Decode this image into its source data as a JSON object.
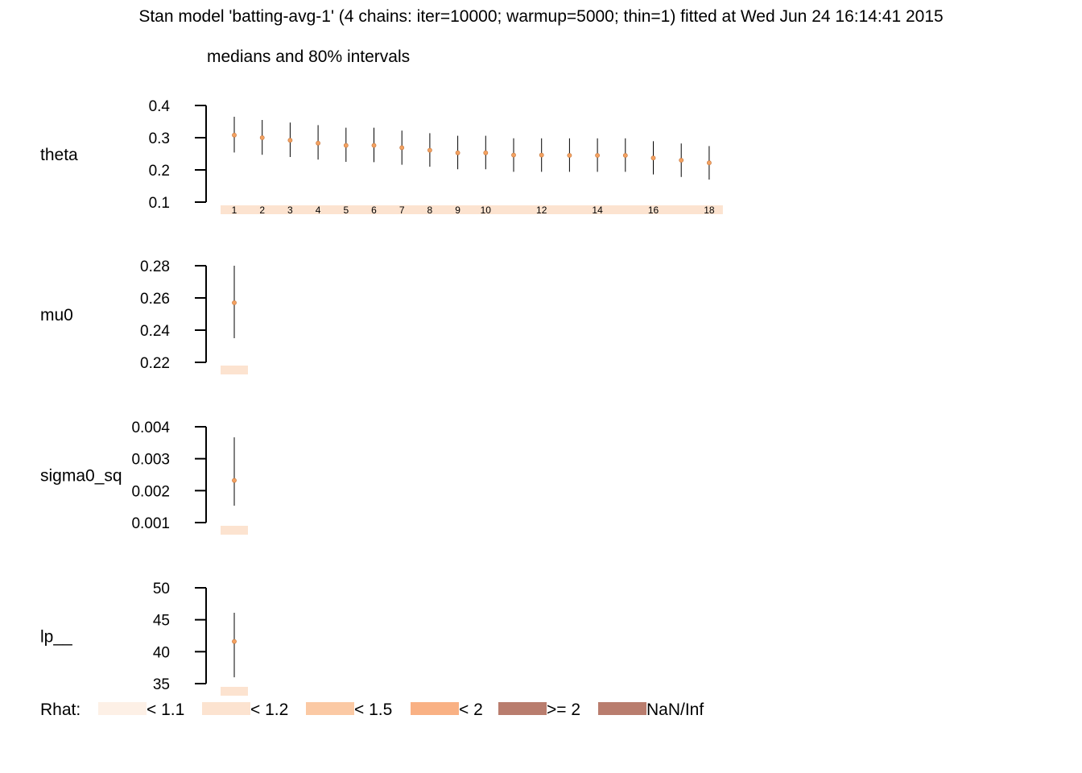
{
  "title": "Stan model 'batting-avg-1' (4 chains: iter=10000; warmup=5000; thin=1) fitted at Wed Jun 24 16:14:41 2015",
  "subtitle": "medians and 80% intervals",
  "colors": {
    "axis": "#000000",
    "interval": "#000000",
    "median_fill": "#f4a261",
    "median_stroke": "#c2733a",
    "rhat_lt_1_1": "#fdf0e6",
    "rhat_lt_1_2": "#fce3d0",
    "rhat_lt_1_5": "#fbc9a4",
    "rhat_lt_2": "#f9b184",
    "rhat_ge_2": "#b97d6e",
    "rhat_nan": "#b97d6e"
  },
  "chart_data": [
    {
      "type": "interval",
      "parameter": "theta",
      "ylim": [
        0.1,
        0.4
      ],
      "yticks": [
        "0.1",
        "0.2",
        "0.3",
        "0.4"
      ],
      "index_labels": [
        "1",
        "2",
        "3",
        "4",
        "5",
        "6",
        "7",
        "8",
        "9",
        "10",
        "",
        "12",
        "",
        "14",
        "",
        "16",
        "",
        "18"
      ],
      "rhat_band": "rhat_lt_1_2",
      "points": [
        {
          "index": 1,
          "median": 0.308,
          "low": 0.254,
          "high": 0.365
        },
        {
          "index": 2,
          "median": 0.3,
          "low": 0.247,
          "high": 0.355
        },
        {
          "index": 3,
          "median": 0.292,
          "low": 0.24,
          "high": 0.347
        },
        {
          "index": 4,
          "median": 0.283,
          "low": 0.232,
          "high": 0.339
        },
        {
          "index": 5,
          "median": 0.276,
          "low": 0.225,
          "high": 0.331
        },
        {
          "index": 6,
          "median": 0.276,
          "low": 0.224,
          "high": 0.331
        },
        {
          "index": 7,
          "median": 0.269,
          "low": 0.216,
          "high": 0.322
        },
        {
          "index": 8,
          "median": 0.261,
          "low": 0.21,
          "high": 0.314
        },
        {
          "index": 9,
          "median": 0.253,
          "low": 0.202,
          "high": 0.306
        },
        {
          "index": 10,
          "median": 0.253,
          "low": 0.202,
          "high": 0.306
        },
        {
          "index": 11,
          "median": 0.246,
          "low": 0.194,
          "high": 0.298
        },
        {
          "index": 12,
          "median": 0.246,
          "low": 0.194,
          "high": 0.298
        },
        {
          "index": 13,
          "median": 0.245,
          "low": 0.194,
          "high": 0.298
        },
        {
          "index": 14,
          "median": 0.245,
          "low": 0.194,
          "high": 0.298
        },
        {
          "index": 15,
          "median": 0.245,
          "low": 0.194,
          "high": 0.298
        },
        {
          "index": 16,
          "median": 0.237,
          "low": 0.186,
          "high": 0.289
        },
        {
          "index": 17,
          "median": 0.23,
          "low": 0.178,
          "high": 0.282
        },
        {
          "index": 18,
          "median": 0.222,
          "low": 0.17,
          "high": 0.274
        }
      ]
    },
    {
      "type": "interval",
      "parameter": "mu0",
      "ylim": [
        0.22,
        0.28
      ],
      "yticks": [
        "0.22",
        "0.24",
        "0.26",
        "0.28"
      ],
      "index_labels": [],
      "rhat_band": "rhat_lt_1_2",
      "points": [
        {
          "index": 1,
          "median": 0.257,
          "low": 0.235,
          "high": 0.28
        }
      ]
    },
    {
      "type": "interval",
      "parameter": "sigma0_sq",
      "ylim": [
        0.001,
        0.004
      ],
      "yticks": [
        "0.001",
        "0.002",
        "0.003",
        "0.004"
      ],
      "index_labels": [],
      "rhat_band": "rhat_lt_1_2",
      "points": [
        {
          "index": 1,
          "median": 0.00232,
          "low": 0.00153,
          "high": 0.00367
        }
      ]
    },
    {
      "type": "interval",
      "parameter": "lp__",
      "ylim": [
        35,
        50
      ],
      "yticks": [
        "35",
        "40",
        "45",
        "50"
      ],
      "index_labels": [],
      "rhat_band": "rhat_lt_1_2",
      "points": [
        {
          "index": 1,
          "median": 41.6,
          "low": 36.0,
          "high": 46.1
        }
      ]
    }
  ],
  "legend": {
    "title": "Rhat:",
    "items": [
      {
        "label": "< 1.1",
        "color_key": "rhat_lt_1_1"
      },
      {
        "label": "< 1.2",
        "color_key": "rhat_lt_1_2"
      },
      {
        "label": "< 1.5",
        "color_key": "rhat_lt_1_5"
      },
      {
        "label": "< 2",
        "color_key": "rhat_lt_2"
      },
      {
        "label": ">= 2",
        "color_key": "rhat_ge_2"
      },
      {
        "label": "NaN/Inf",
        "color_key": "rhat_nan"
      }
    ]
  }
}
